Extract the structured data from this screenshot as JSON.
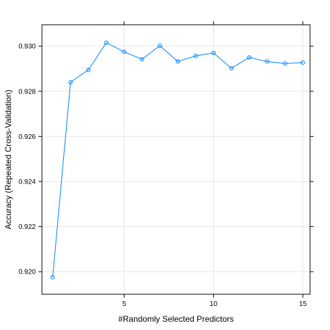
{
  "chart_data": {
    "type": "line",
    "title": "",
    "xlabel": "#Randomly Selected Predictors",
    "ylabel": "Accuracy (Repeated Cross-Validation)",
    "x": [
      1,
      2,
      3,
      4,
      5,
      6,
      7,
      8,
      9,
      10,
      11,
      12,
      13,
      14,
      15
    ],
    "series": [
      {
        "name": "",
        "values": [
          0.91975,
          0.9284,
          0.92895,
          0.93015,
          0.92975,
          0.92942,
          0.93002,
          0.92932,
          0.92957,
          0.9297,
          0.92902,
          0.9295,
          0.92932,
          0.92923,
          0.92927
        ]
      }
    ],
    "xticks": [
      5,
      10,
      15
    ],
    "xtick_labels": [
      "5",
      "10",
      "15"
    ],
    "yticks": [
      0.92,
      0.922,
      0.924,
      0.926,
      0.928,
      0.93
    ],
    "ytick_labels": [
      "0.920",
      "0.922",
      "0.924",
      "0.926",
      "0.928",
      "0.930"
    ],
    "xlim": [
      0.4,
      15.4
    ],
    "ylim": [
      0.919,
      0.93095
    ],
    "grid": true,
    "legend": "none",
    "line_color": "#0080ff",
    "grid_color": "#e6e6e6"
  }
}
